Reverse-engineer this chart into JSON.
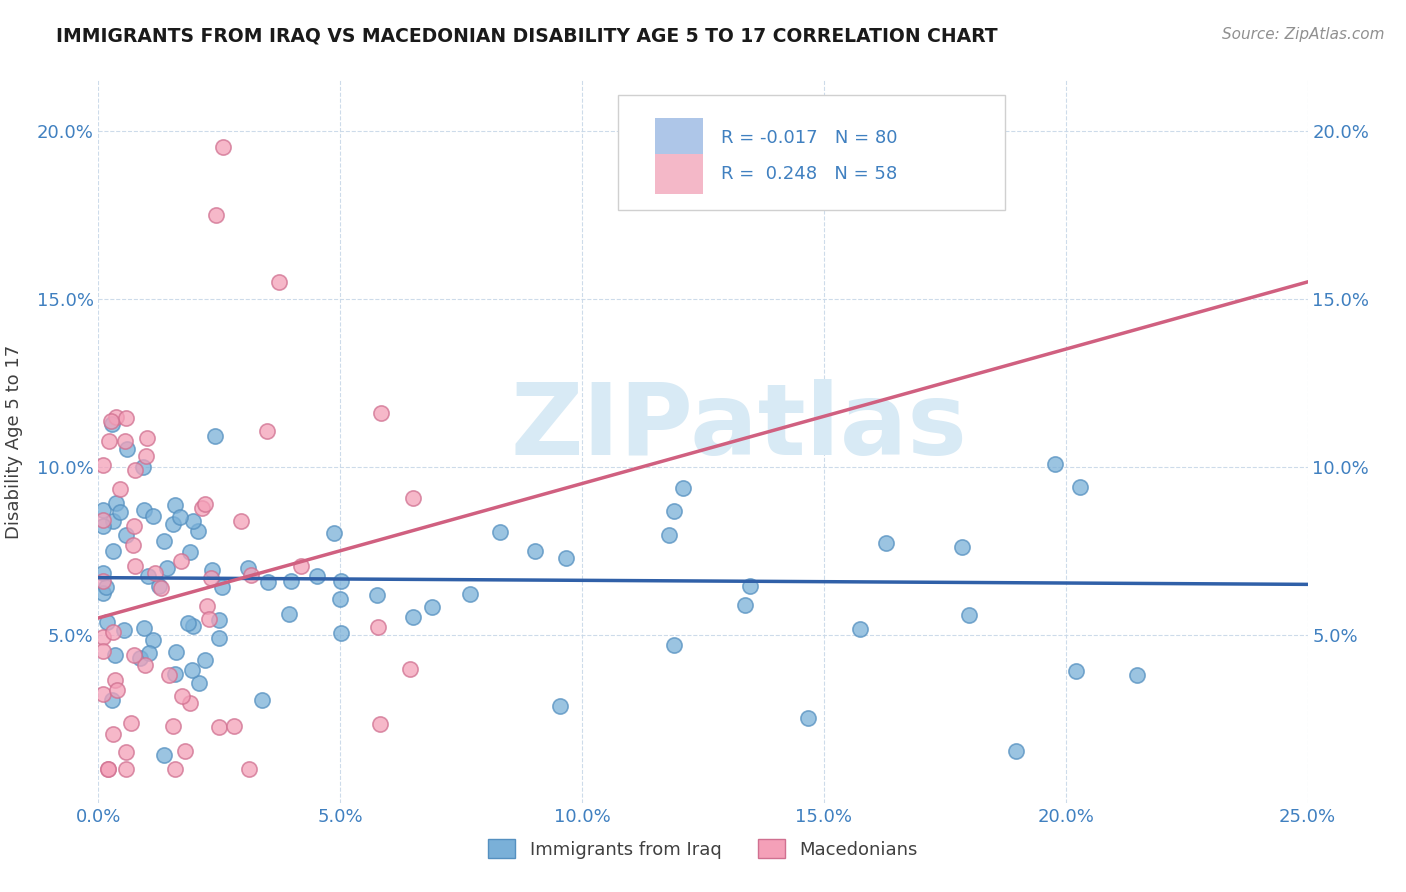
{
  "title": "IMMIGRANTS FROM IRAQ VS MACEDONIAN DISABILITY AGE 5 TO 17 CORRELATION CHART",
  "source_text": "Source: ZipAtlas.com",
  "xlabel": "",
  "ylabel": "Disability Age 5 to 17",
  "xmin": 0.0,
  "xmax": 0.25,
  "ymin": 0.0,
  "ymax": 0.215,
  "yticks": [
    0.05,
    0.1,
    0.15,
    0.2
  ],
  "ytick_labels": [
    "5.0%",
    "10.0%",
    "15.0%",
    "20.0%"
  ],
  "xticks": [
    0.0,
    0.05,
    0.1,
    0.15,
    0.2,
    0.25
  ],
  "xtick_labels": [
    "0.0%",
    "5.0%",
    "10.0%",
    "15.0%",
    "20.0%",
    "25.0%"
  ],
  "series1_name": "Immigrants from Iraq",
  "series1_color": "#7ab0d8",
  "series1_edge_color": "#5590c0",
  "series1_R": -0.017,
  "series1_N": 80,
  "series1_line_color": "#3060a8",
  "series2_name": "Macedonians",
  "series2_color": "#f4a0b8",
  "series2_edge_color": "#d07090",
  "series2_R": 0.248,
  "series2_N": 58,
  "series2_line_color": "#d06080",
  "legend_sq1_color": "#aec6e8",
  "legend_sq2_color": "#f4b8c8",
  "watermark_text": "ZIPatlas",
  "watermark_color": "#d8eaf5",
  "background_color": "#ffffff",
  "grid_color": "#c8d8e8",
  "title_color": "#1a1a1a",
  "axis_label_color": "#404040",
  "tick_label_color": "#4080c0",
  "source_color": "#909090",
  "trend_line_y_start_iraq": 0.067,
  "trend_line_y_end_iraq": 0.065,
  "trend_line_y_start_mac": 0.055,
  "trend_line_y_end_mac": 0.155
}
